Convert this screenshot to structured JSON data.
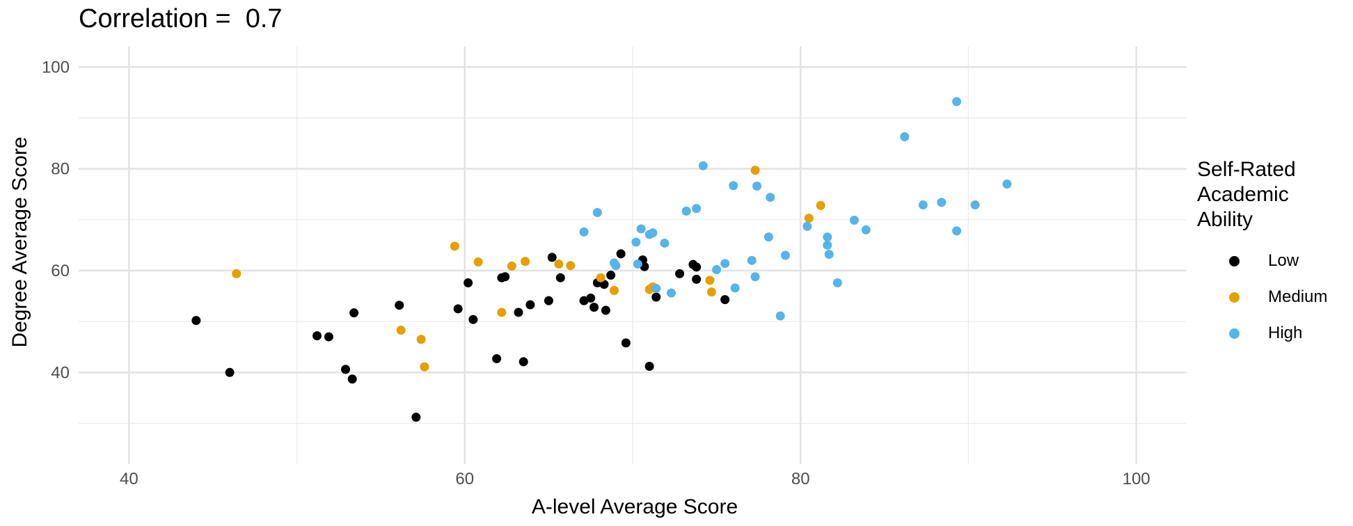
{
  "chart_data": {
    "type": "scatter",
    "title": "Correlation =  0.7",
    "xlabel": "A-level Average Score",
    "ylabel": "Degree Average Score",
    "xlim": [
      37,
      103
    ],
    "ylim": [
      22,
      104
    ],
    "xticks": [
      40,
      60,
      80,
      100
    ],
    "yticks": [
      40,
      60,
      80,
      100
    ],
    "grid": true,
    "legend": {
      "title": "Self-Rated Academic Ability",
      "title_lines": [
        "Self-Rated",
        "Academic",
        "Ability"
      ],
      "position": "right"
    },
    "series": [
      {
        "name": "Low",
        "color": "#000000",
        "points": [
          [
            44.0,
            50.2
          ],
          [
            46.0,
            40.0
          ],
          [
            51.2,
            47.2
          ],
          [
            51.9,
            47.0
          ],
          [
            52.9,
            40.6
          ],
          [
            53.3,
            38.7
          ],
          [
            53.4,
            51.7
          ],
          [
            56.1,
            53.2
          ],
          [
            57.1,
            31.2
          ],
          [
            59.6,
            52.5
          ],
          [
            60.2,
            57.6
          ],
          [
            60.5,
            50.4
          ],
          [
            61.9,
            42.7
          ],
          [
            62.2,
            58.6
          ],
          [
            62.4,
            58.8
          ],
          [
            63.2,
            51.8
          ],
          [
            63.5,
            42.1
          ],
          [
            63.9,
            53.3
          ],
          [
            65.0,
            54.1
          ],
          [
            65.2,
            62.6
          ],
          [
            65.7,
            58.6
          ],
          [
            67.1,
            54.1
          ],
          [
            67.5,
            54.6
          ],
          [
            67.7,
            52.8
          ],
          [
            67.9,
            57.6
          ],
          [
            68.3,
            57.3
          ],
          [
            68.4,
            52.2
          ],
          [
            68.7,
            59.1
          ],
          [
            69.3,
            63.3
          ],
          [
            69.6,
            45.8
          ],
          [
            70.6,
            62.1
          ],
          [
            70.7,
            60.8
          ],
          [
            71.0,
            41.2
          ],
          [
            71.4,
            54.8
          ],
          [
            72.8,
            59.4
          ],
          [
            73.6,
            61.2
          ],
          [
            73.8,
            60.7
          ],
          [
            73.8,
            58.3
          ],
          [
            75.5,
            54.3
          ]
        ]
      },
      {
        "name": "Medium",
        "color": "#E69F00",
        "points": [
          [
            46.4,
            59.4
          ],
          [
            56.2,
            48.3
          ],
          [
            57.4,
            46.5
          ],
          [
            57.6,
            41.1
          ],
          [
            59.4,
            64.8
          ],
          [
            60.8,
            61.7
          ],
          [
            62.2,
            51.8
          ],
          [
            62.8,
            60.9
          ],
          [
            63.6,
            61.8
          ],
          [
            65.6,
            61.3
          ],
          [
            66.3,
            61.0
          ],
          [
            68.1,
            58.6
          ],
          [
            68.9,
            56.1
          ],
          [
            71.0,
            56.3
          ],
          [
            71.2,
            56.8
          ],
          [
            74.6,
            58.1
          ],
          [
            74.7,
            55.8
          ],
          [
            77.3,
            79.7
          ],
          [
            80.5,
            70.3
          ],
          [
            81.2,
            72.8
          ]
        ]
      },
      {
        "name": "High",
        "color": "#56B4E9",
        "points": [
          [
            67.1,
            67.6
          ],
          [
            67.9,
            71.4
          ],
          [
            68.9,
            61.5
          ],
          [
            69.0,
            61.0
          ],
          [
            70.2,
            65.6
          ],
          [
            70.3,
            61.3
          ],
          [
            70.5,
            68.2
          ],
          [
            71.0,
            67.1
          ],
          [
            71.2,
            67.4
          ],
          [
            71.4,
            56.5
          ],
          [
            71.9,
            65.4
          ],
          [
            72.3,
            55.6
          ],
          [
            73.2,
            71.7
          ],
          [
            73.8,
            72.2
          ],
          [
            74.2,
            80.6
          ],
          [
            75.0,
            60.2
          ],
          [
            75.5,
            61.4
          ],
          [
            76.0,
            76.7
          ],
          [
            76.1,
            56.6
          ],
          [
            77.1,
            62.0
          ],
          [
            77.3,
            58.8
          ],
          [
            77.4,
            76.6
          ],
          [
            78.1,
            66.6
          ],
          [
            78.2,
            74.4
          ],
          [
            78.8,
            51.1
          ],
          [
            79.1,
            63.0
          ],
          [
            80.4,
            68.7
          ],
          [
            81.6,
            66.6
          ],
          [
            81.6,
            65.0
          ],
          [
            81.7,
            63.2
          ],
          [
            82.2,
            57.6
          ],
          [
            83.2,
            69.9
          ],
          [
            83.9,
            68.0
          ],
          [
            86.2,
            86.3
          ],
          [
            87.3,
            72.9
          ],
          [
            88.4,
            73.4
          ],
          [
            89.3,
            93.2
          ],
          [
            89.3,
            67.8
          ],
          [
            90.4,
            72.9
          ],
          [
            92.3,
            77.0
          ]
        ]
      }
    ]
  }
}
